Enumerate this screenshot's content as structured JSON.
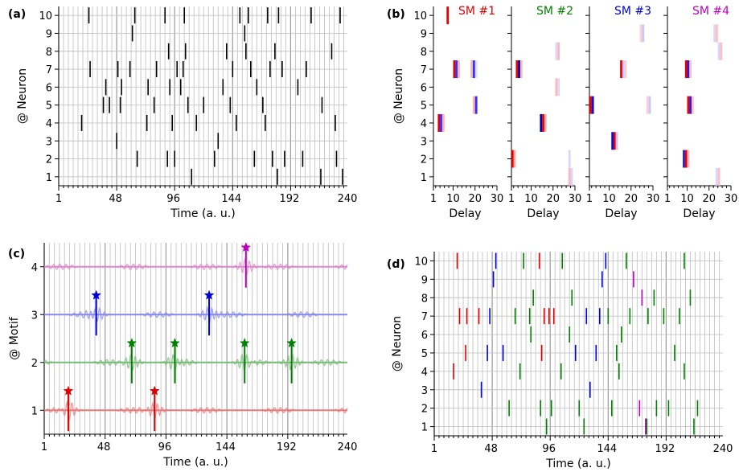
{
  "chart_data": [
    {
      "panel": "a",
      "type": "scatter",
      "panel_label": "(a)",
      "xlabel": "Time (a. u.)",
      "ylabel": "@ Neuron",
      "xlim": [
        1,
        240
      ],
      "ylim": [
        0.5,
        10.5
      ],
      "xticks": [
        1,
        48,
        96,
        144,
        192,
        240
      ],
      "yticks": [
        1,
        2,
        3,
        4,
        5,
        6,
        7,
        8,
        9,
        10
      ],
      "grid": true,
      "marker": "vertical-line",
      "color": "#000000",
      "points": [
        [
          20,
          4
        ],
        [
          26,
          10
        ],
        [
          27,
          7
        ],
        [
          38,
          5
        ],
        [
          43,
          5
        ],
        [
          40,
          6
        ],
        [
          49,
          3
        ],
        [
          50,
          7
        ],
        [
          52,
          5
        ],
        [
          53,
          6
        ],
        [
          60,
          7
        ],
        [
          62,
          9
        ],
        [
          64,
          10
        ],
        [
          66,
          2
        ],
        [
          74,
          4
        ],
        [
          75,
          6
        ],
        [
          80,
          5
        ],
        [
          82,
          7
        ],
        [
          89,
          10
        ],
        [
          91,
          2
        ],
        [
          92,
          8
        ],
        [
          93,
          6
        ],
        [
          95,
          4
        ],
        [
          97,
          2
        ],
        [
          99,
          7
        ],
        [
          102,
          6
        ],
        [
          104,
          7
        ],
        [
          105,
          10
        ],
        [
          106,
          8
        ],
        [
          108,
          5
        ],
        [
          111,
          1
        ],
        [
          115,
          4
        ],
        [
          121,
          5
        ],
        [
          130,
          2
        ],
        [
          133,
          3
        ],
        [
          137,
          6
        ],
        [
          140,
          8
        ],
        [
          143,
          5
        ],
        [
          145,
          7
        ],
        [
          148,
          4
        ],
        [
          151,
          10
        ],
        [
          155,
          9
        ],
        [
          156,
          8
        ],
        [
          158,
          10
        ],
        [
          160,
          7
        ],
        [
          163,
          2
        ],
        [
          165,
          6
        ],
        [
          170,
          5
        ],
        [
          172,
          4
        ],
        [
          174,
          10
        ],
        [
          176,
          7
        ],
        [
          178,
          2
        ],
        [
          180,
          8
        ],
        [
          182,
          1
        ],
        [
          183,
          10
        ],
        [
          186,
          7
        ],
        [
          188,
          2
        ],
        [
          199,
          6
        ],
        [
          203,
          2
        ],
        [
          206,
          7
        ],
        [
          210,
          10
        ],
        [
          218,
          1
        ],
        [
          219,
          5
        ],
        [
          227,
          8
        ],
        [
          230,
          4
        ],
        [
          231,
          2
        ],
        [
          234,
          10
        ],
        [
          236,
          1
        ]
      ]
    },
    {
      "panel": "b",
      "type": "heatmap",
      "panel_label": "(b)",
      "xlabel": "Delay",
      "ylabel": "@ Neuron",
      "xlim": [
        1,
        30
      ],
      "xticks": [
        1,
        10,
        20,
        30
      ],
      "yticks": [
        1,
        2,
        3,
        4,
        5,
        6,
        7,
        8,
        9,
        10
      ],
      "submodels": [
        {
          "title": "SM #1",
          "color": "#dd0000",
          "blocks": [
            [
              7,
              10,
              0
            ],
            [
              10,
              7,
              0
            ],
            [
              11,
              7,
              -1
            ],
            [
              12,
              7,
              1
            ],
            [
              18,
              7,
              1
            ],
            [
              19,
              7,
              -1
            ],
            [
              20,
              7,
              2
            ],
            [
              19,
              5,
              1
            ],
            [
              20,
              5,
              -1
            ],
            [
              3,
              4,
              0
            ],
            [
              4,
              4,
              -1
            ],
            [
              5,
              4,
              1
            ]
          ]
        },
        {
          "title": "SM #2",
          "color": "#008000",
          "blocks": [
            [
              3,
              7,
              -1
            ],
            [
              4,
              7,
              0
            ],
            [
              5,
              7,
              1
            ],
            [
              14,
              4,
              0
            ],
            [
              15,
              4,
              -1
            ],
            [
              16,
              4,
              1
            ],
            [
              21,
              8,
              2
            ],
            [
              22,
              8,
              1
            ],
            [
              21,
              6,
              1
            ],
            [
              22,
              6,
              2
            ],
            [
              1,
              2,
              -1
            ],
            [
              2,
              2,
              1
            ],
            [
              27,
              2,
              2
            ],
            [
              28,
              1,
              2
            ],
            [
              27,
              1,
              1
            ]
          ]
        },
        {
          "title": "SM #3",
          "color": "#0000cc",
          "blocks": [
            [
              1,
              5,
              0
            ],
            [
              2,
              5,
              -1
            ],
            [
              11,
              3,
              -1
            ],
            [
              12,
              3,
              0
            ],
            [
              13,
              3,
              1
            ],
            [
              15,
              7,
              0
            ],
            [
              16,
              7,
              1
            ],
            [
              17,
              7,
              2
            ],
            [
              24,
              9,
              2
            ],
            [
              25,
              9,
              1
            ],
            [
              27,
              5,
              2
            ],
            [
              28,
              5,
              1
            ]
          ]
        },
        {
          "title": "SM #4",
          "color": "#bb00bb",
          "blocks": [
            [
              9,
              7,
              0
            ],
            [
              10,
              7,
              -1
            ],
            [
              11,
              7,
              1
            ],
            [
              10,
              5,
              0
            ],
            [
              11,
              5,
              -1
            ],
            [
              12,
              5,
              1
            ],
            [
              8,
              2,
              -1
            ],
            [
              9,
              2,
              0
            ],
            [
              10,
              2,
              1
            ],
            [
              22,
              9,
              2
            ],
            [
              23,
              9,
              1
            ],
            [
              24,
              8,
              2
            ],
            [
              25,
              8,
              1
            ],
            [
              23,
              1,
              2
            ],
            [
              24,
              1,
              1
            ]
          ]
        }
      ]
    },
    {
      "panel": "c",
      "type": "line",
      "panel_label": "(c)",
      "xlabel": "Time (a. u.)",
      "ylabel": "@ Motif",
      "xlim": [
        1,
        240
      ],
      "ylim": [
        0.5,
        4.5
      ],
      "xticks": [
        1,
        48,
        96,
        144,
        192,
        240
      ],
      "yticks": [
        1,
        2,
        3,
        4
      ],
      "grid": true,
      "series": [
        {
          "level": 1,
          "color": "#ee7777",
          "star_color": "#dd0000",
          "stars": [
            20,
            88
          ]
        },
        {
          "level": 2,
          "color": "#77bb77",
          "star_color": "#008000",
          "stars": [
            70,
            104,
            159,
            196
          ]
        },
        {
          "level": 3,
          "color": "#8888ee",
          "star_color": "#0000dd",
          "stars": [
            42,
            131
          ]
        },
        {
          "level": 4,
          "color": "#dd88cc",
          "star_color": "#bb00bb",
          "stars": [
            160
          ]
        }
      ]
    },
    {
      "panel": "d",
      "type": "scatter",
      "panel_label": "(d)",
      "xlabel": "Time (a. u.)",
      "ylabel": "@ Neuron",
      "xlim": [
        1,
        240
      ],
      "ylim": [
        0.5,
        10.5
      ],
      "xticks": [
        1,
        48,
        96,
        144,
        192,
        240
      ],
      "yticks": [
        1,
        2,
        3,
        4,
        5,
        6,
        7,
        8,
        9,
        10
      ],
      "grid": true,
      "marker": "vertical-line",
      "colors": {
        "r": "#dd0000",
        "g": "#008000",
        "b": "#0000dd",
        "m": "#bb00bb"
      },
      "points": [
        [
          17,
          4,
          "r"
        ],
        [
          20,
          10,
          "r"
        ],
        [
          22,
          7,
          "r"
        ],
        [
          27,
          5,
          "r"
        ],
        [
          28,
          7,
          "r"
        ],
        [
          38,
          7,
          "r"
        ],
        [
          40,
          3,
          "b"
        ],
        [
          45,
          5,
          "b"
        ],
        [
          47,
          7,
          "b"
        ],
        [
          50,
          9,
          "b"
        ],
        [
          52,
          10,
          "b"
        ],
        [
          58,
          5,
          "b"
        ],
        [
          63,
          2,
          "g"
        ],
        [
          68,
          7,
          "g"
        ],
        [
          72,
          4,
          "g"
        ],
        [
          75,
          10,
          "g"
        ],
        [
          80,
          7,
          "g"
        ],
        [
          81,
          6,
          "g"
        ],
        [
          83,
          8,
          "g"
        ],
        [
          89,
          2,
          "g"
        ],
        [
          90,
          5,
          "r"
        ],
        [
          92,
          7,
          "r"
        ],
        [
          88,
          10,
          "r"
        ],
        [
          94,
          1,
          "g"
        ],
        [
          96,
          7,
          "r"
        ],
        [
          98,
          2,
          "g"
        ],
        [
          100,
          7,
          "r"
        ],
        [
          106,
          4,
          "g"
        ],
        [
          107,
          10,
          "g"
        ],
        [
          113,
          6,
          "g"
        ],
        [
          115,
          8,
          "g"
        ],
        [
          118,
          5,
          "b"
        ],
        [
          121,
          2,
          "g"
        ],
        [
          125,
          1,
          "g"
        ],
        [
          127,
          7,
          "b"
        ],
        [
          130,
          3,
          "b"
        ],
        [
          135,
          5,
          "b"
        ],
        [
          138,
          7,
          "b"
        ],
        [
          140,
          9,
          "b"
        ],
        [
          143,
          10,
          "b"
        ],
        [
          145,
          7,
          "g"
        ],
        [
          148,
          2,
          "g"
        ],
        [
          152,
          5,
          "g"
        ],
        [
          154,
          4,
          "g"
        ],
        [
          156,
          6,
          "g"
        ],
        [
          160,
          10,
          "g"
        ],
        [
          163,
          7,
          "g"
        ],
        [
          166,
          9,
          "m"
        ],
        [
          171,
          2,
          "m"
        ],
        [
          173,
          8,
          "m"
        ],
        [
          176,
          1,
          "m"
        ],
        [
          178,
          7,
          "g"
        ],
        [
          177,
          1,
          "g"
        ],
        [
          183,
          8,
          "g"
        ],
        [
          185,
          2,
          "g"
        ],
        [
          191,
          7,
          "g"
        ],
        [
          195,
          2,
          "g"
        ],
        [
          200,
          5,
          "g"
        ],
        [
          204,
          7,
          "g"
        ],
        [
          208,
          4,
          "g"
        ],
        [
          208,
          10,
          "g"
        ],
        [
          213,
          8,
          "g"
        ],
        [
          216,
          1,
          "g"
        ],
        [
          219,
          2,
          "g"
        ]
      ]
    }
  ]
}
